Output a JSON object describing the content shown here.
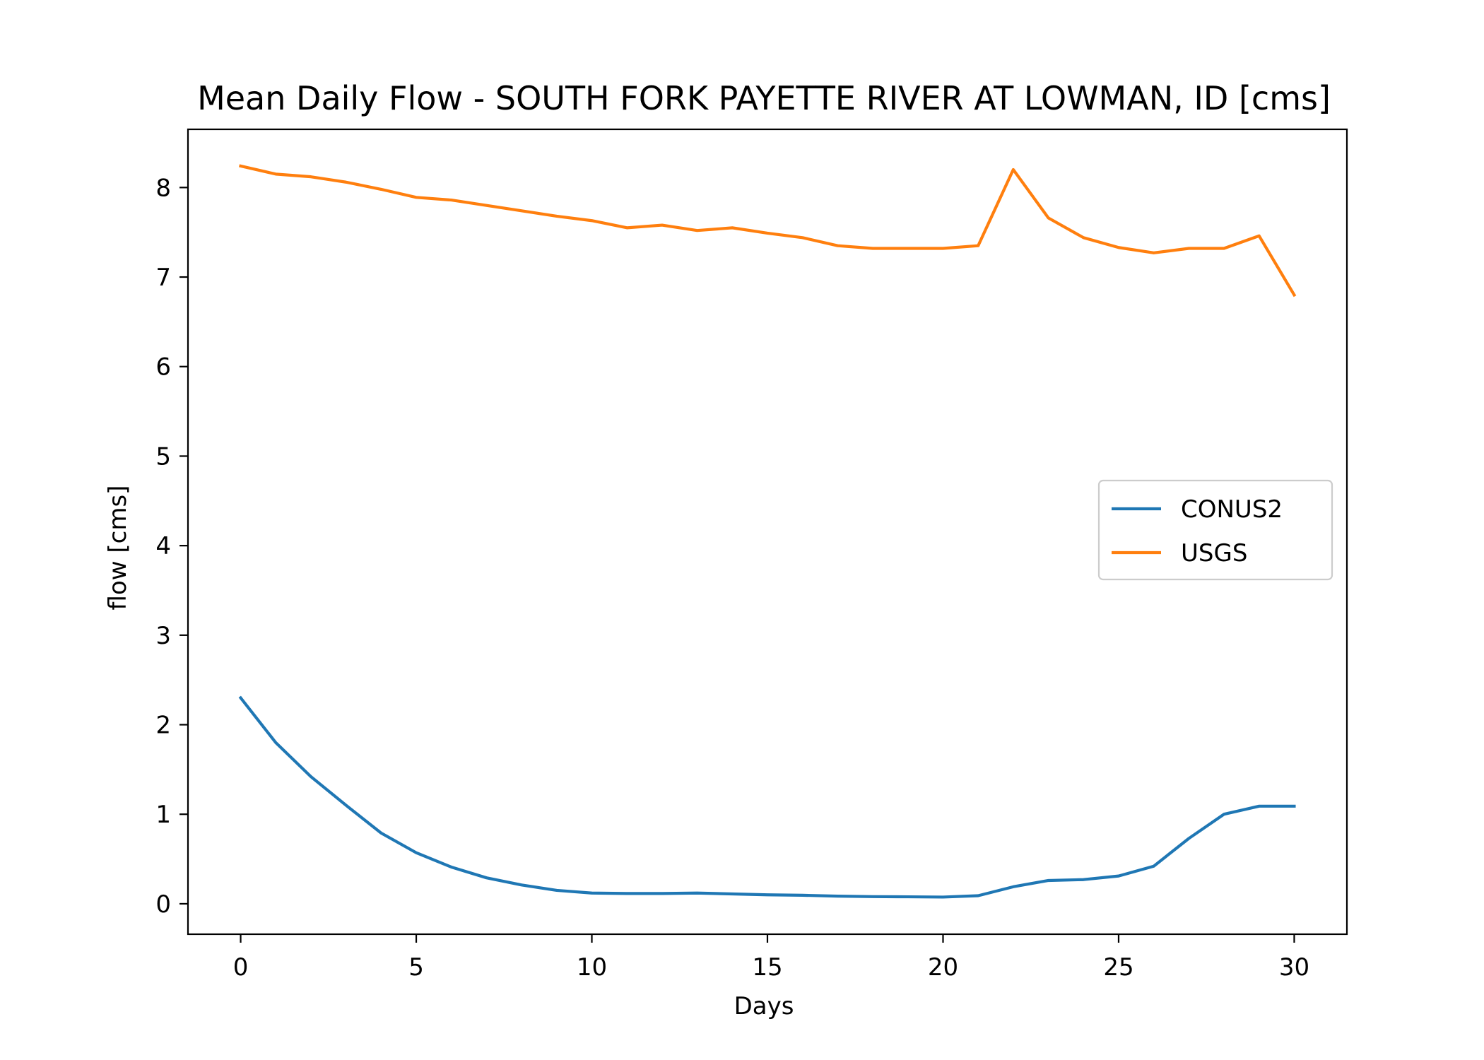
{
  "chart_data": {
    "type": "line",
    "title": "Mean Daily Flow - SOUTH FORK PAYETTE RIVER AT LOWMAN, ID [cms]",
    "xlabel": "Days",
    "ylabel": "flow [cms]",
    "xlim": [
      -1.5,
      31.5
    ],
    "ylim": [
      -0.34,
      8.65
    ],
    "xticks": [
      0,
      5,
      10,
      15,
      20,
      25,
      30
    ],
    "yticks": [
      0,
      1,
      2,
      3,
      4,
      5,
      6,
      7,
      8
    ],
    "grid": false,
    "legend_position": "center-right",
    "x": [
      0,
      1,
      2,
      3,
      4,
      5,
      6,
      7,
      8,
      9,
      10,
      11,
      12,
      13,
      14,
      15,
      16,
      17,
      18,
      19,
      20,
      21,
      22,
      23,
      24,
      25,
      26,
      27,
      28,
      29,
      30
    ],
    "series": [
      {
        "name": "CONUS2",
        "color": "#1f77b4",
        "values": [
          2.3,
          1.8,
          1.42,
          1.1,
          0.79,
          0.57,
          0.41,
          0.29,
          0.21,
          0.15,
          0.12,
          0.115,
          0.115,
          0.12,
          0.11,
          0.1,
          0.095,
          0.085,
          0.08,
          0.078,
          0.075,
          0.09,
          0.19,
          0.26,
          0.27,
          0.31,
          0.42,
          0.73,
          1.0,
          1.09,
          1.09
        ]
      },
      {
        "name": "USGS",
        "color": "#ff7f0e",
        "values": [
          8.24,
          8.15,
          8.12,
          8.06,
          7.98,
          7.89,
          7.86,
          7.8,
          7.74,
          7.68,
          7.63,
          7.55,
          7.58,
          7.52,
          7.55,
          7.49,
          7.44,
          7.35,
          7.32,
          7.32,
          7.32,
          7.35,
          8.2,
          7.66,
          7.44,
          7.33,
          7.27,
          7.32,
          7.32,
          7.46,
          6.8
        ]
      }
    ]
  }
}
